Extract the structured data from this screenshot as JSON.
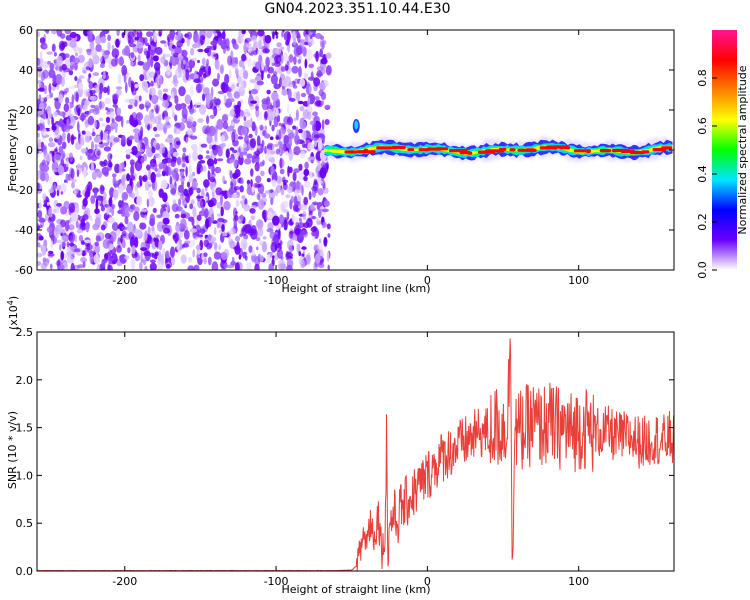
{
  "title": "GN04.2023.351.10.44.E30",
  "chart_data": [
    {
      "type": "heatmap",
      "xlabel": "Height of straight line (km)",
      "ylabel": "Frequency (Hz)",
      "xlim": [
        -258,
        163
      ],
      "ylim": [
        -60,
        60
      ],
      "xticks": [
        -200,
        -100,
        0,
        100
      ],
      "yticks": [
        -60,
        -40,
        -20,
        0,
        20,
        40,
        60
      ],
      "noise_region_x": [
        -258,
        -65
      ],
      "noise_region_y": [
        -60,
        60
      ],
      "signal_band": {
        "frequency_hz": 0,
        "x_start": -68,
        "x_end": 163,
        "spike": {
          "x": -47,
          "frequency_hz": 14
        }
      },
      "colorbar": {
        "label": "Normalized spectral amplitude",
        "range": [
          0.0,
          1.0
        ],
        "ticks": [
          0.0,
          0.2,
          0.4,
          0.6,
          0.8
        ],
        "colors": [
          "#ffffff",
          "#6a00ff",
          "#0000ff",
          "#00e5ff",
          "#00ff00",
          "#ffff00",
          "#ff7f00",
          "#ff0000",
          "#ff1493"
        ]
      },
      "colors": {
        "noise": "#7f00ff",
        "band_outer": "#3333ff",
        "band_mid": "#00ff66",
        "band_core": "#ff0000"
      }
    },
    {
      "type": "line",
      "xlabel": "Height of straight line (km)",
      "ylabel": "SNR (10 * v/v)",
      "y_multiplier": "(x10",
      "y_multiplier_exp": "4",
      "y_multiplier_close": ")",
      "xlim": [
        -258,
        163
      ],
      "ylim": [
        0,
        2.5
      ],
      "xticks": [
        -200,
        -100,
        0,
        100
      ],
      "yticks": [
        "0.0",
        "0.5",
        "1.0",
        "1.5",
        "2.0",
        "2.5"
      ],
      "color": "#e8403a",
      "x": [
        -258,
        -250,
        -200,
        -150,
        -100,
        -60,
        -50,
        -47,
        -45,
        -42,
        -40,
        -38,
        -35,
        -32,
        -30,
        -28,
        -27,
        -26,
        -25,
        -22,
        -20,
        -18,
        -15,
        -12,
        -10,
        -5,
        0,
        5,
        10,
        15,
        20,
        25,
        30,
        35,
        40,
        45,
        50,
        53,
        55,
        56,
        58,
        60,
        65,
        70,
        75,
        80,
        85,
        90,
        95,
        100,
        105,
        110,
        115,
        120,
        125,
        130,
        135,
        140,
        145,
        150,
        155,
        160,
        163
      ],
      "y": [
        0.005,
        0.004,
        0.004,
        0.004,
        0.004,
        0.004,
        0.01,
        0.05,
        0.15,
        0.4,
        0.3,
        0.55,
        0.35,
        0.6,
        0.2,
        0.35,
        1.45,
        0.05,
        0.5,
        0.6,
        0.5,
        0.65,
        0.7,
        0.75,
        0.8,
        0.9,
        1.0,
        1.1,
        1.2,
        1.25,
        1.3,
        1.35,
        1.4,
        1.45,
        1.45,
        1.5,
        1.5,
        1.55,
        2.5,
        0.2,
        1.5,
        1.45,
        1.5,
        1.55,
        1.5,
        1.55,
        1.5,
        1.5,
        1.45,
        1.5,
        1.5,
        1.45,
        1.45,
        1.45,
        1.4,
        1.4,
        1.4,
        1.35,
        1.35,
        1.4,
        1.35,
        1.4,
        1.35
      ]
    }
  ]
}
